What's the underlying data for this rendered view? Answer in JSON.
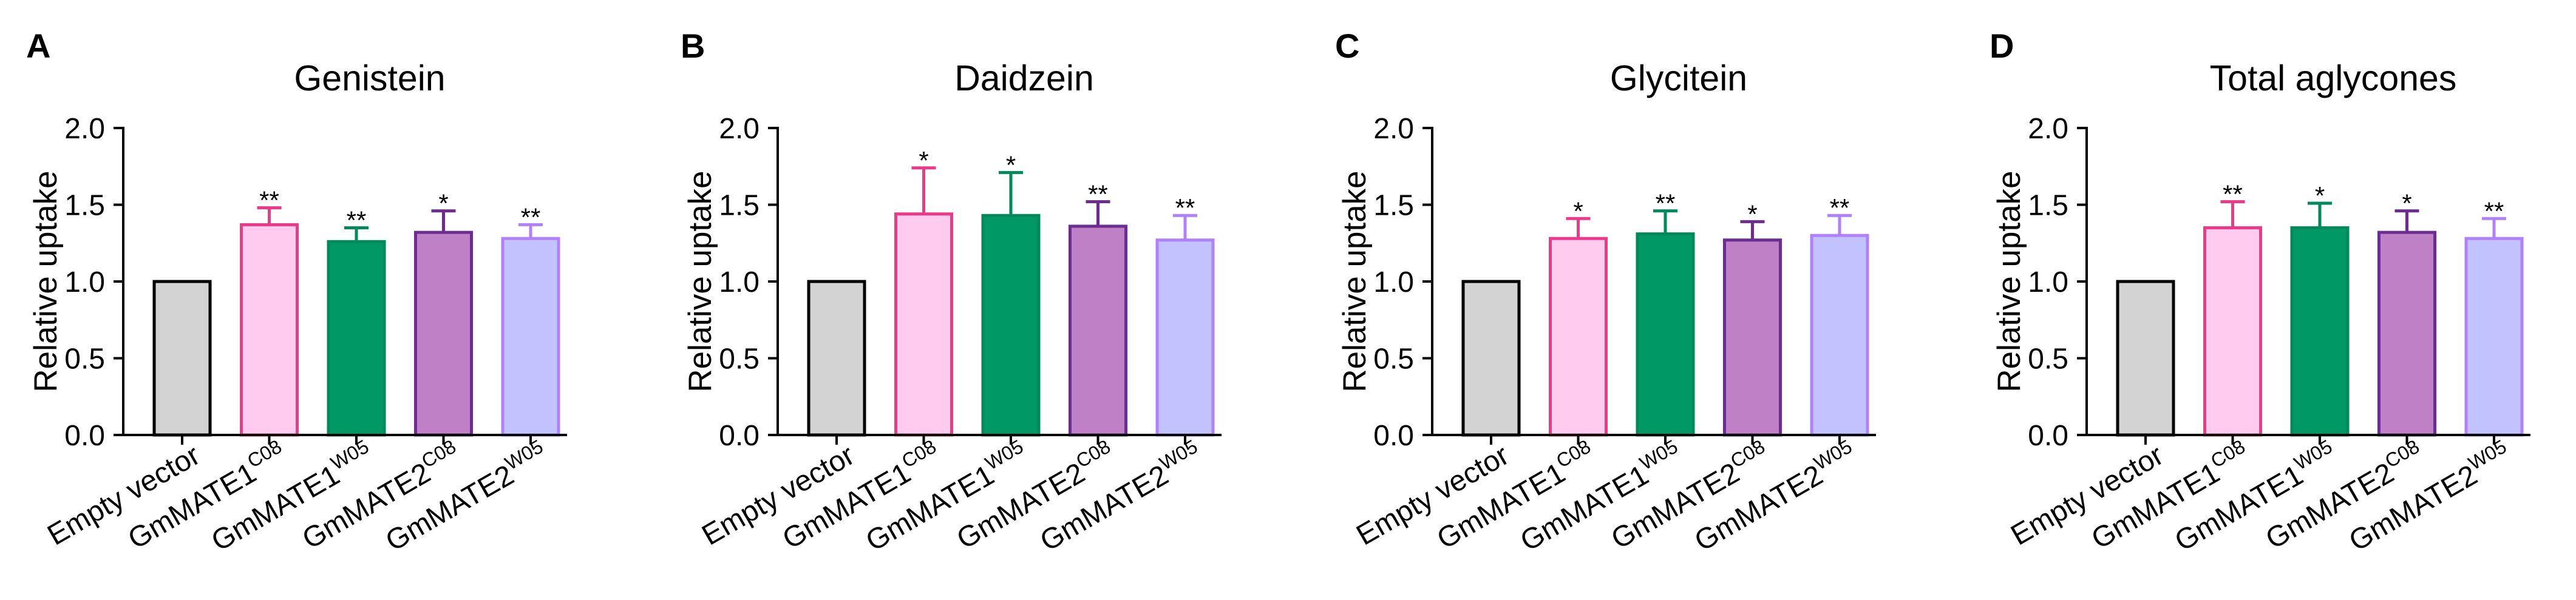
{
  "style": {
    "text_color": "#000000",
    "axis_color": "#000000",
    "background": "#ffffff",
    "bar_fills": [
      "#d3d3d3",
      "#ffccf0",
      "#009966",
      "#bf80c6",
      "#c2c2ff"
    ],
    "bar_strokes": [
      "#000000",
      "#f0388a",
      "#008a5c",
      "#6b2d8f",
      "#b080ff"
    ]
  },
  "chart_data": [
    {
      "panel": "A",
      "type": "bar",
      "title": "Genistein",
      "ylabel": "Relative uptake",
      "ylim": [
        0,
        2
      ],
      "yticks": [
        "0.0",
        "0.5",
        "1.0",
        "1.5",
        "2.0"
      ],
      "categories": [
        {
          "label": "Empty vector"
        },
        {
          "label": "GmMATE1",
          "sup": "C08"
        },
        {
          "label": "GmMATE1",
          "sup": "W05"
        },
        {
          "label": "GmMATE2",
          "sup": "C08"
        },
        {
          "label": "GmMATE2",
          "sup": "W05"
        }
      ],
      "values": [
        1.0,
        1.37,
        1.26,
        1.32,
        1.28
      ],
      "errors": [
        0,
        0.11,
        0.09,
        0.14,
        0.09
      ],
      "significance": [
        null,
        "**",
        "**",
        "*",
        "**"
      ]
    },
    {
      "panel": "B",
      "type": "bar",
      "title": "Daidzein",
      "ylabel": "Relative uptake",
      "ylim": [
        0,
        2
      ],
      "yticks": [
        "0.0",
        "0.5",
        "1.0",
        "1.5",
        "2.0"
      ],
      "categories": [
        {
          "label": "Empty vector"
        },
        {
          "label": "GmMATE1",
          "sup": "C08"
        },
        {
          "label": "GmMATE1",
          "sup": "W05"
        },
        {
          "label": "GmMATE2",
          "sup": "C08"
        },
        {
          "label": "GmMATE2",
          "sup": "W05"
        }
      ],
      "values": [
        1.0,
        1.44,
        1.43,
        1.36,
        1.27
      ],
      "errors": [
        0,
        0.3,
        0.28,
        0.16,
        0.16
      ],
      "significance": [
        null,
        "*",
        "*",
        "**",
        "**"
      ]
    },
    {
      "panel": "C",
      "type": "bar",
      "title": "Glycitein",
      "ylabel": "Relative uptake",
      "ylim": [
        0,
        2
      ],
      "yticks": [
        "0.0",
        "0.5",
        "1.0",
        "1.5",
        "2.0"
      ],
      "categories": [
        {
          "label": "Empty vector"
        },
        {
          "label": "GmMATE1",
          "sup": "C08"
        },
        {
          "label": "GmMATE1",
          "sup": "W05"
        },
        {
          "label": "GmMATE2",
          "sup": "C08"
        },
        {
          "label": "GmMATE2",
          "sup": "W05"
        }
      ],
      "values": [
        1.0,
        1.28,
        1.31,
        1.27,
        1.3
      ],
      "errors": [
        0,
        0.13,
        0.15,
        0.12,
        0.13
      ],
      "significance": [
        null,
        "*",
        "**",
        "*",
        "**"
      ]
    },
    {
      "panel": "D",
      "type": "bar",
      "title": "Total aglycones",
      "ylabel": "Relative uptake",
      "ylim": [
        0,
        2
      ],
      "yticks": [
        "0.0",
        "0.5",
        "1.0",
        "1.5",
        "2.0"
      ],
      "categories": [
        {
          "label": "Empty vector"
        },
        {
          "label": "GmMATE1",
          "sup": "C08"
        },
        {
          "label": "GmMATE1",
          "sup": "W05"
        },
        {
          "label": "GmMATE2",
          "sup": "C08"
        },
        {
          "label": "GmMATE2",
          "sup": "W05"
        }
      ],
      "values": [
        1.0,
        1.35,
        1.35,
        1.32,
        1.28
      ],
      "errors": [
        0,
        0.17,
        0.16,
        0.14,
        0.13
      ],
      "significance": [
        null,
        "**",
        "*",
        "*",
        "**"
      ]
    }
  ]
}
